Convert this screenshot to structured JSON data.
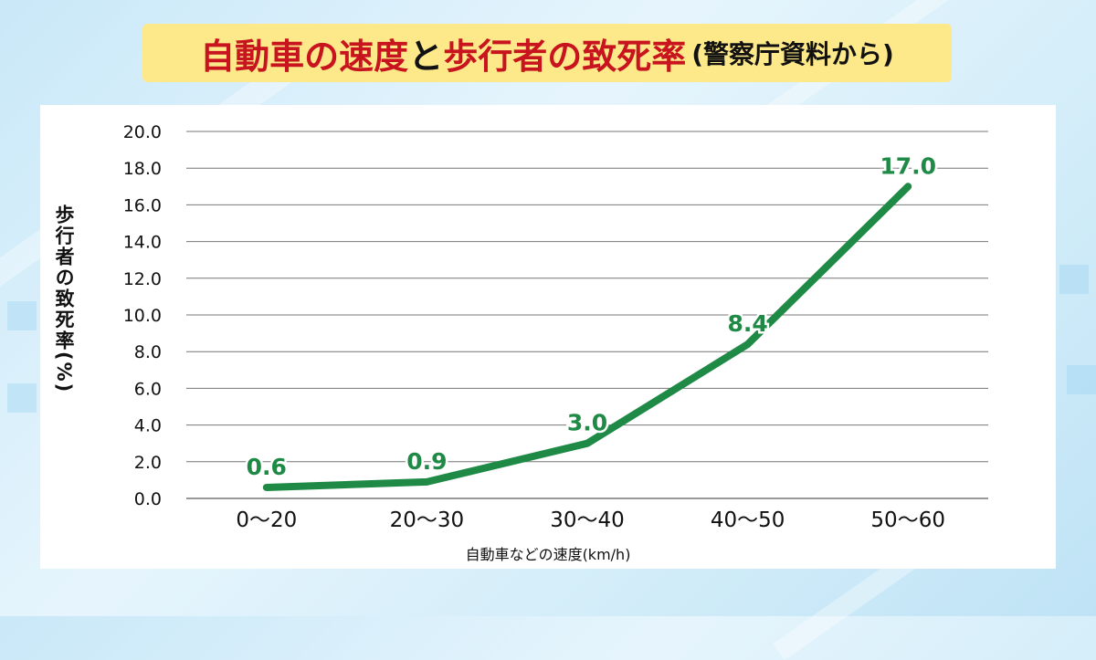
{
  "title": {
    "part1": "自動車の速度",
    "part2": "と",
    "part3": "歩行者の致死率",
    "source": "(警察庁資料から)"
  },
  "colors": {
    "title_bg": "#fde98a",
    "title_red": "#c8141e",
    "line": "#1e8a45",
    "grid": "#777777"
  },
  "chart_data": {
    "type": "line",
    "categories": [
      "0～20",
      "20～30",
      "30～40",
      "40～50",
      "50～60"
    ],
    "values": [
      0.6,
      0.9,
      3.0,
      8.4,
      17.0
    ],
    "data_labels": [
      "0.6",
      "0.9",
      "3.0",
      "8.4",
      "17.0"
    ],
    "xlabel": "自動車などの速度(km/h)",
    "ylabel": "歩行者の致死率(%)",
    "ylim": [
      0,
      20
    ],
    "yticks": [
      "0.0",
      "2.0",
      "4.0",
      "6.0",
      "8.0",
      "10.0",
      "12.0",
      "14.0",
      "16.0",
      "18.0",
      "20.0"
    ],
    "grid": true,
    "legend": "none"
  }
}
